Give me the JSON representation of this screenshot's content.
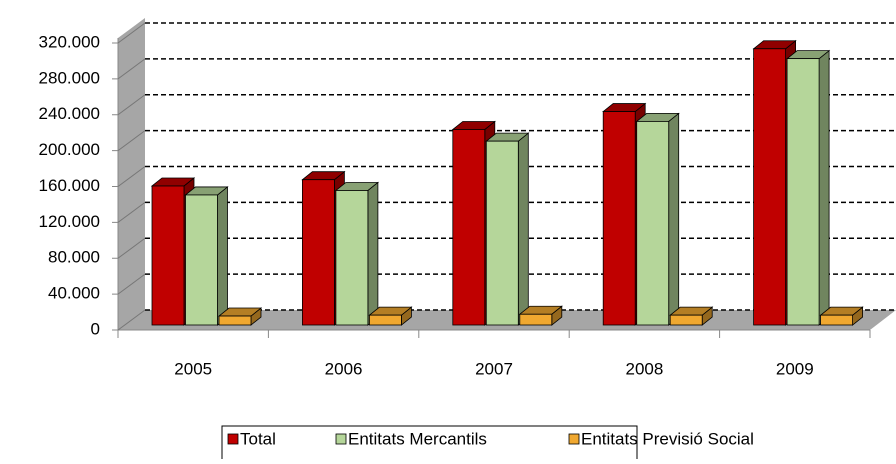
{
  "chart_data": {
    "type": "bar3d",
    "categories": [
      "2005",
      "2006",
      "2007",
      "2008",
      "2009"
    ],
    "series": [
      {
        "name": "Total",
        "color": "#c00000",
        "values": [
          155000,
          162000,
          218000,
          238000,
          308000
        ]
      },
      {
        "name": "Entitats Mercantils",
        "color": "#b5d69a",
        "values": [
          145000,
          150000,
          205000,
          227000,
          297000
        ]
      },
      {
        "name": "Entitats Previsió Social",
        "color": "#f0a830",
        "values": [
          10000,
          11000,
          12000,
          11000,
          11000
        ]
      }
    ],
    "ylim": [
      0,
      320000
    ],
    "yticks": [
      0,
      {
        "value": 40000,
        "label": "40.000"
      },
      {
        "value": 80000,
        "label": "80.000"
      },
      {
        "value": 120000,
        "label": "120.000"
      },
      {
        "value": 160000,
        "label": "160.000"
      },
      {
        "value": 200000,
        "label": "200.000"
      },
      {
        "value": 240000,
        "label": "240.000"
      },
      {
        "value": 280000,
        "label": "280.000"
      },
      {
        "value": 320000,
        "label": "320.000"
      }
    ],
    "grid": true,
    "legend": "bottom"
  }
}
